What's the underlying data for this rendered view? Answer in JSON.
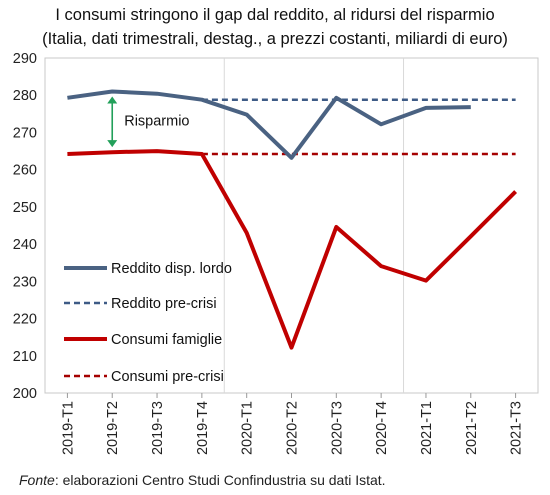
{
  "title": "I consumi stringono il gap dal reddito, al ridursi del risparmio",
  "subtitle": "(Italia, dati trimestrali, destag., a prezzi costanti, miliardi di euro)",
  "source": {
    "label": "Fonte",
    "text": ": elaborazioni Centro Studi Confindustria su dati Istat."
  },
  "chart_data": {
    "type": "line",
    "categories": [
      "2019-T1",
      "2019-T2",
      "2019-T3",
      "2019-T4",
      "2020-T1",
      "2020-T2",
      "2020-T3",
      "2020-T4",
      "2021-T1",
      "2021-T2",
      "2021-T3"
    ],
    "ylim": [
      200,
      290
    ],
    "yticks": [
      "200",
      "210",
      "220",
      "230",
      "240",
      "250",
      "260",
      "270",
      "280",
      "290"
    ],
    "annotation": "Risparmio",
    "series": [
      {
        "name": "Reddito disp. lordo",
        "color": "#4a6282",
        "style": "solid",
        "values": [
          279.3,
          281.0,
          280.4,
          278.8,
          274.8,
          263.2,
          279.3,
          272.2,
          276.6,
          276.8,
          null
        ]
      },
      {
        "name": "Reddito pre-crisi",
        "color": "#3e5b86",
        "style": "dashed",
        "values": [
          null,
          null,
          null,
          278.8,
          278.8,
          278.8,
          278.8,
          278.8,
          278.8,
          278.8,
          278.8
        ]
      },
      {
        "name": "Consumi famiglie",
        "color": "#c00000",
        "style": "solid",
        "values": [
          264.2,
          264.7,
          265.0,
          264.2,
          243.0,
          212.2,
          244.6,
          234.1,
          230.2,
          242.1,
          254.1
        ]
      },
      {
        "name": "Consumi pre-crisi",
        "color": "#a50000",
        "style": "dashed",
        "values": [
          null,
          null,
          null,
          264.2,
          264.2,
          264.2,
          264.2,
          264.2,
          264.2,
          264.2,
          264.2
        ]
      }
    ]
  }
}
